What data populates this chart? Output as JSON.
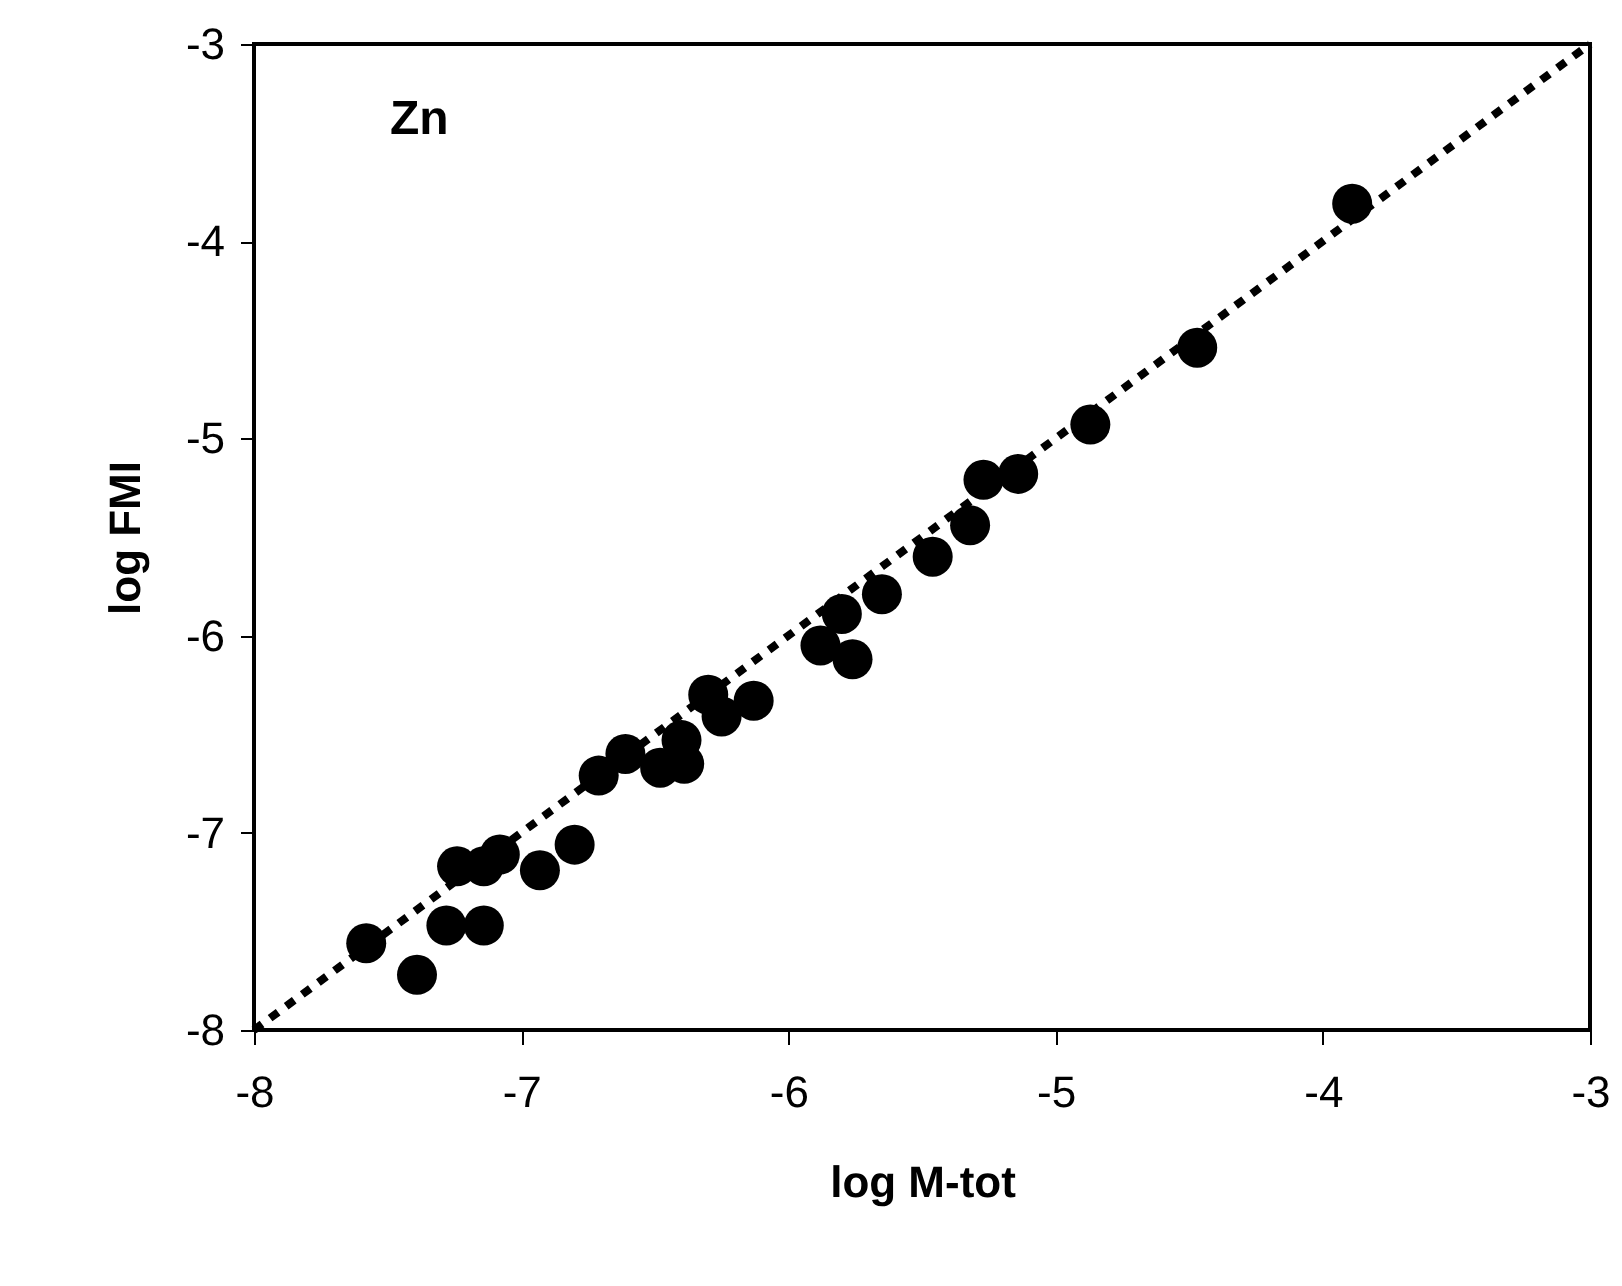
{
  "chart_data": {
    "type": "scatter",
    "xlabel": "log M-tot",
    "ylabel": "log FMI",
    "annotations": [
      "Zn"
    ],
    "xlim": [
      -8,
      -3
    ],
    "ylim": [
      -8,
      -3
    ],
    "xticks": [
      -8,
      -7,
      -6,
      -5,
      -4,
      -3
    ],
    "yticks": [
      -8,
      -7,
      -6,
      -5,
      -4,
      -3
    ],
    "grid": false,
    "series": [
      {
        "color": "#000000",
        "marker": "circle",
        "x": [
          -7.58,
          -7.39,
          -7.28,
          -7.24,
          -7.14,
          -7.14,
          -7.08,
          -6.93,
          -6.8,
          -6.71,
          -6.61,
          -6.48,
          -6.4,
          -6.39,
          -6.3,
          -6.25,
          -6.13,
          -5.88,
          -5.76,
          -5.8,
          -5.65,
          -5.46,
          -5.32,
          -5.27,
          -5.14,
          -4.87,
          -4.47,
          -3.89
        ],
        "values": [
          -7.56,
          -7.72,
          -7.47,
          -7.17,
          -7.17,
          -7.47,
          -7.11,
          -7.19,
          -7.06,
          -6.71,
          -6.6,
          -6.67,
          -6.53,
          -6.65,
          -6.3,
          -6.41,
          -6.33,
          -6.05,
          -6.12,
          -5.89,
          -5.79,
          -5.6,
          -5.44,
          -5.21,
          -5.18,
          -4.93,
          -4.54,
          -3.81
        ]
      },
      {
        "type": "line",
        "color": "#000000",
        "line_style": "dotted",
        "x": [
          -8,
          -3
        ],
        "values": [
          -8,
          -3
        ]
      }
    ]
  }
}
